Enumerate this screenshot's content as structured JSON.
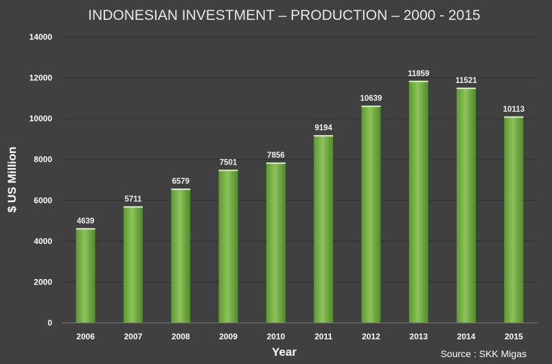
{
  "chart_data": {
    "type": "bar",
    "title": "INDONESIAN INVESTMENT – PRODUCTION – 2000 - 2015",
    "xlabel": "Year",
    "ylabel": "$ US Million",
    "categories": [
      "2006",
      "2007",
      "2008",
      "2009",
      "2010",
      "2011",
      "2012",
      "2013",
      "2014",
      "2015"
    ],
    "values": [
      4639,
      5711,
      6579,
      7501,
      7856,
      9194,
      10639,
      11859,
      11521,
      10113
    ],
    "ylim": [
      0,
      14000
    ],
    "yticks": [
      "0",
      "2000",
      "4000",
      "6000",
      "8000",
      "10000",
      "12000",
      "14000"
    ],
    "grid": true,
    "legend": "none",
    "data_labels": true,
    "source": "Source : SKK Migas",
    "colors": {
      "background": "#404040",
      "bar_light": "#8fc25a",
      "bar_dark": "#4f8a2b",
      "bar_top": "#d9ecc6",
      "text": "#ffffff",
      "grid": "#2e2e2e"
    }
  }
}
